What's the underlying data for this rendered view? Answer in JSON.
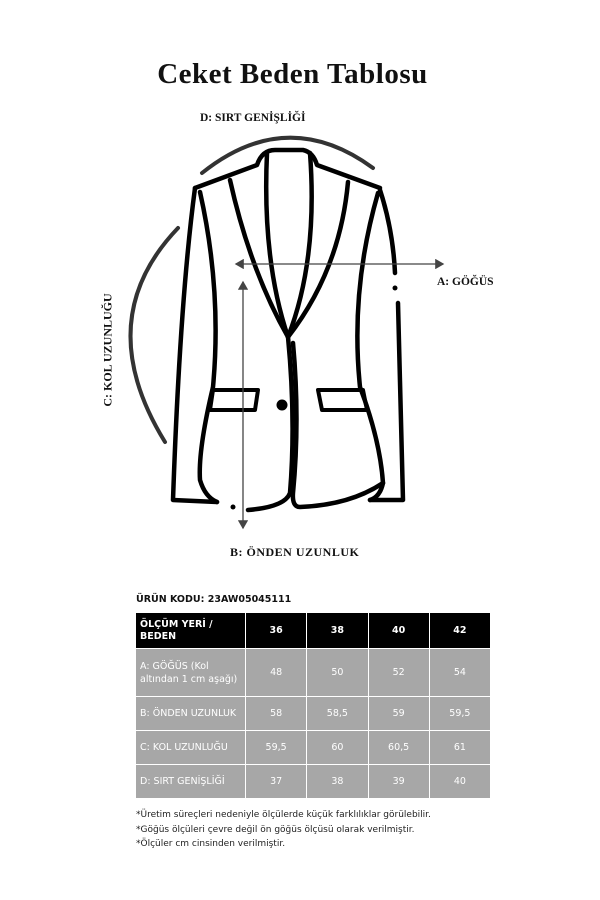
{
  "title": "Ceket Beden Tablosu",
  "labels": {
    "d": "D: SIRT  GENİŞLİĞİ",
    "a": "A: GÖĞÜS",
    "b": "B: ÖNDEN UZUNLUK",
    "c": "C: KOL UZUNLUĞU"
  },
  "product_code": "ÜRÜN KODU: 23AW05045111",
  "table": {
    "header": [
      "ÖLÇÜM YERİ / BEDEN",
      "36",
      "38",
      "40",
      "42"
    ],
    "rows": [
      {
        "label": "A: GÖĞÜS (Kol altından 1 cm aşağı)",
        "values": [
          "48",
          "50",
          "52",
          "54"
        ]
      },
      {
        "label": "B: ÖNDEN UZUNLUK",
        "values": [
          "58",
          "58,5",
          "59",
          "59,5"
        ]
      },
      {
        "label": "C: KOL UZUNLUĞU",
        "values": [
          "59,5",
          "60",
          "60,5",
          "61"
        ]
      },
      {
        "label": "D: SIRT GENİŞLİĞİ",
        "values": [
          "37",
          "38",
          "39",
          "40"
        ]
      }
    ]
  },
  "notes": [
    "*Üretim süreçleri nedeniyle ölçülerde küçük farklılıklar görülebilir.",
    "*Göğüs ölçüleri çevre değil ön göğüs ölçüsü olarak verilmiştir.",
    "*Ölçüler cm cinsinden verilmiştir."
  ]
}
